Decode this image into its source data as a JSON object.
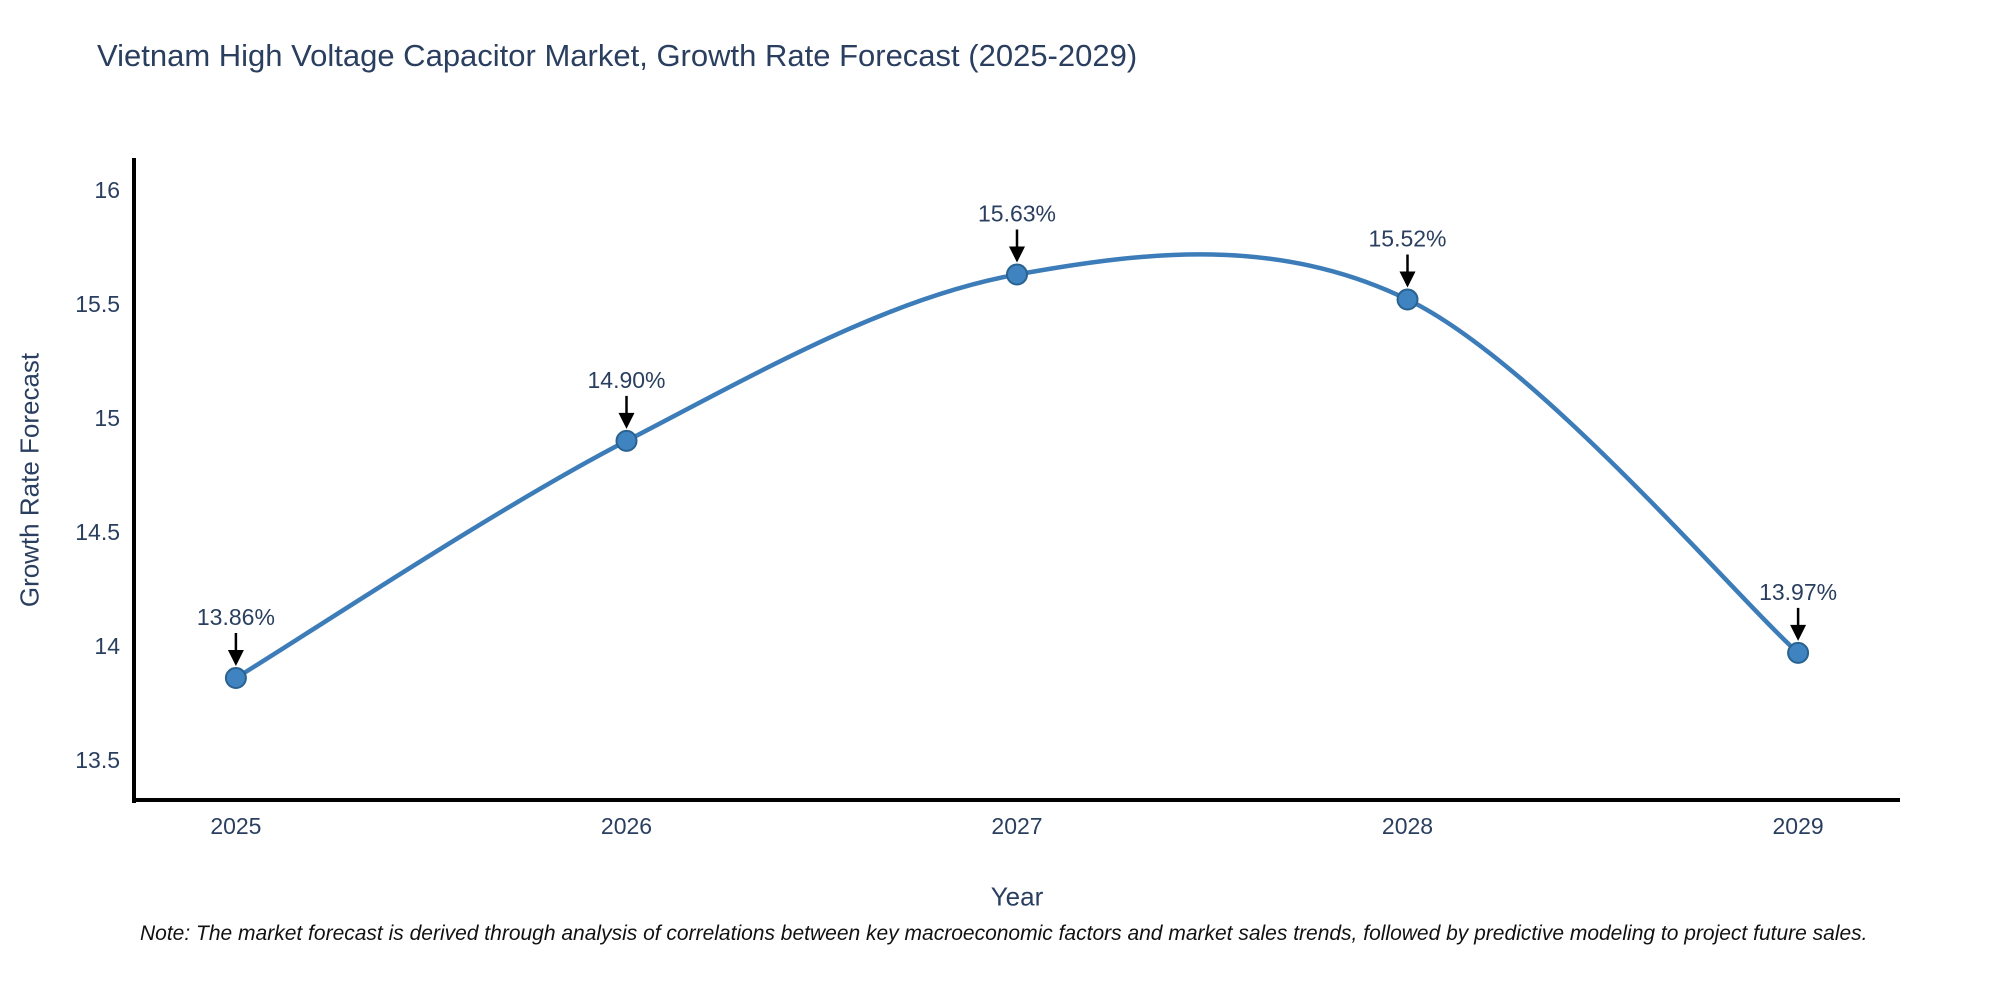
{
  "chart_data": {
    "type": "line",
    "title": "Vietnam High Voltage Capacitor Market, Growth Rate Forecast (2025-2029)",
    "xlabel": "Year",
    "ylabel": "Growth Rate Forecast",
    "note": "Note: The market forecast is derived through analysis of correlations between key macroeconomic factors and market sales trends, followed by predictive modeling to project future sales.",
    "x": [
      2025,
      2026,
      2027,
      2028,
      2029
    ],
    "values": [
      13.86,
      14.9,
      15.63,
      15.52,
      13.97
    ],
    "point_labels": [
      "13.86%",
      "14.90%",
      "15.63%",
      "15.52%",
      "13.97%"
    ],
    "xticks": [
      2025,
      2026,
      2027,
      2028,
      2029
    ],
    "yticks": [
      13.5,
      14,
      14.5,
      15,
      15.5,
      16
    ],
    "xlim": [
      2024.739,
      2029.261
    ],
    "ylim": [
      13.325,
      16.132
    ],
    "grid": false,
    "legend": false,
    "line_shape": "spline",
    "colors": {
      "line": "#3c7cb8",
      "marker_fill": "#3f84c0",
      "marker_edge": "#2a628f",
      "arrow": "#000000",
      "axis_spine": "#000000",
      "tick_text": "#2a3f5f",
      "annotation_text": "#2a3f5f",
      "title_text": "#2a3f5f"
    }
  }
}
